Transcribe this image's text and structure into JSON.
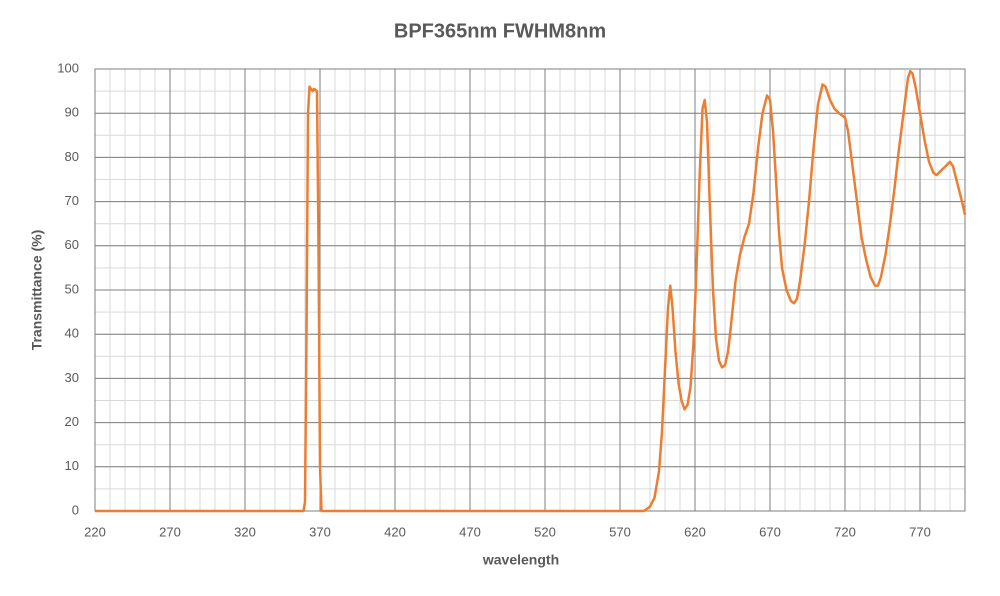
{
  "chart_data": {
    "type": "line",
    "title": "BPF365nm FWHM8nm",
    "x_label": "wavelength",
    "y_label": "Transmittance (%)",
    "xlim": [
      220,
      800
    ],
    "ylim": [
      0,
      100
    ],
    "xticks": [
      220,
      270,
      320,
      370,
      420,
      470,
      520,
      570,
      620,
      670,
      720,
      770
    ],
    "yticks": [
      0,
      10,
      20,
      30,
      40,
      50,
      60,
      70,
      80,
      90,
      100
    ],
    "grid": true,
    "minor_grid": true,
    "series": [
      {
        "name": "BPF365nm FWHM8nm",
        "color": "#ed7d31",
        "x": [
          220,
          359,
          360,
          361,
          362,
          363,
          365,
          366,
          368,
          369,
          370,
          371,
          586,
          590,
          593,
          596,
          598,
          600,
          602,
          603.5,
          605,
          607,
          609,
          611,
          613,
          615,
          617,
          619,
          621,
          623,
          625,
          626.5,
          628,
          630,
          632,
          634,
          636,
          638,
          640,
          642,
          644,
          647,
          650,
          653,
          656,
          659,
          662,
          665,
          668,
          670,
          672,
          674,
          676,
          678,
          681,
          684,
          686,
          688,
          690,
          693,
          696,
          699,
          702,
          705,
          707,
          710,
          713,
          716,
          720,
          722,
          725,
          728,
          731,
          734,
          737,
          740,
          742,
          744,
          747,
          750,
          753,
          756,
          759,
          762,
          763.5,
          765,
          767,
          770,
          773,
          776,
          779,
          781,
          784,
          787,
          790,
          792,
          795,
          798,
          800
        ],
        "values": [
          0,
          0,
          2,
          40,
          90,
          96,
          95,
          95.5,
          95,
          60,
          10,
          0,
          0,
          1,
          3,
          9,
          18,
          32,
          46,
          51,
          46,
          36,
          29,
          25,
          23,
          24,
          28,
          38,
          55,
          75,
          91,
          93,
          88,
          68,
          50,
          39,
          34,
          32.5,
          33,
          36,
          42,
          52,
          58,
          62,
          65,
          72,
          82,
          90,
          94,
          93,
          86,
          75,
          63,
          55,
          50,
          47.5,
          47,
          48,
          52,
          60,
          70,
          82,
          92,
          96.5,
          96,
          93,
          91,
          90,
          89,
          86,
          78,
          70,
          62,
          57,
          53,
          51,
          51,
          53,
          58,
          65,
          73,
          82,
          90,
          98,
          99.5,
          99,
          96,
          90,
          84,
          79,
          76.5,
          76,
          77,
          78,
          79,
          78,
          74,
          70,
          67
        ]
      }
    ]
  }
}
